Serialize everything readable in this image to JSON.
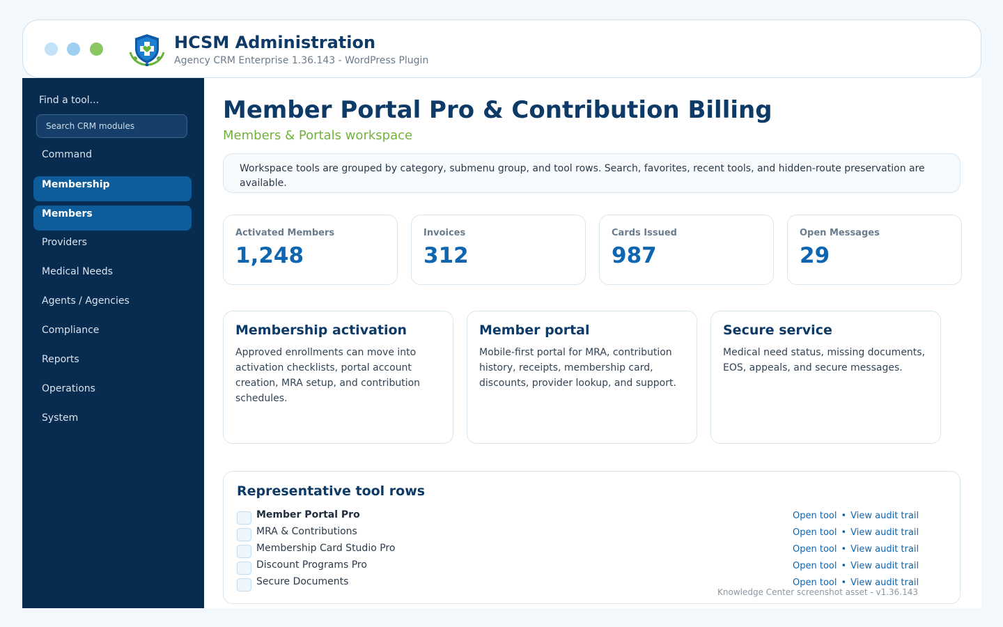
{
  "window": {
    "title": "HCSM Administration",
    "subtitle": "Agency CRM Enterprise 1.36.143 - WordPress Plugin"
  },
  "sidebar": {
    "find_label": "Find a tool...",
    "search_placeholder": "Search CRM modules",
    "items": [
      {
        "label": "Command",
        "active": false
      },
      {
        "label": "Membership",
        "active": true
      },
      {
        "label": "Members",
        "active": true
      },
      {
        "label": "Providers",
        "active": false
      },
      {
        "label": "Medical Needs",
        "active": false
      },
      {
        "label": "Agents / Agencies",
        "active": false
      },
      {
        "label": "Compliance",
        "active": false
      },
      {
        "label": "Reports",
        "active": false
      },
      {
        "label": "Operations",
        "active": false
      },
      {
        "label": "System",
        "active": false
      }
    ]
  },
  "main": {
    "title": "Member Portal Pro & Contribution Billing",
    "subtitle": "Members & Portals workspace",
    "info": "Workspace tools are grouped by category, submenu group, and tool rows. Search, favorites, recent tools, and hidden-route preservation are available.",
    "stats": [
      {
        "label": "Activated Members",
        "value": "1,248"
      },
      {
        "label": "Invoices",
        "value": "312"
      },
      {
        "label": "Cards Issued",
        "value": "987"
      },
      {
        "label": "Open Messages",
        "value": "29"
      }
    ],
    "cards": [
      {
        "title": "Membership activation",
        "text": "Approved enrollments can move into activation checklists, portal account creation, MRA setup, and contribution schedules."
      },
      {
        "title": "Member portal",
        "text": "Mobile-first portal for MRA, contribution history, receipts, membership card, discounts, provider lookup, and support."
      },
      {
        "title": "Secure service",
        "text": "Medical need status, missing documents, EOS, appeals, and secure messages."
      }
    ],
    "tools": {
      "title": "Representative tool rows",
      "open_label": "Open tool",
      "separator": "•",
      "audit_label": "View audit trail",
      "rows": [
        {
          "name": "Member Portal Pro"
        },
        {
          "name": "MRA & Contributions"
        },
        {
          "name": "Membership Card Studio Pro"
        },
        {
          "name": "Discount Programs Pro"
        },
        {
          "name": "Secure Documents"
        }
      ],
      "footer": "Knowledge Center screenshot asset - v1.36.143"
    }
  },
  "colors": {
    "brand_navy": "#0d3a66",
    "sidebar_bg": "#082b50",
    "active_item": "#0f5c9b",
    "accent_green": "#71b23c",
    "link_blue": "#0e65b0"
  }
}
